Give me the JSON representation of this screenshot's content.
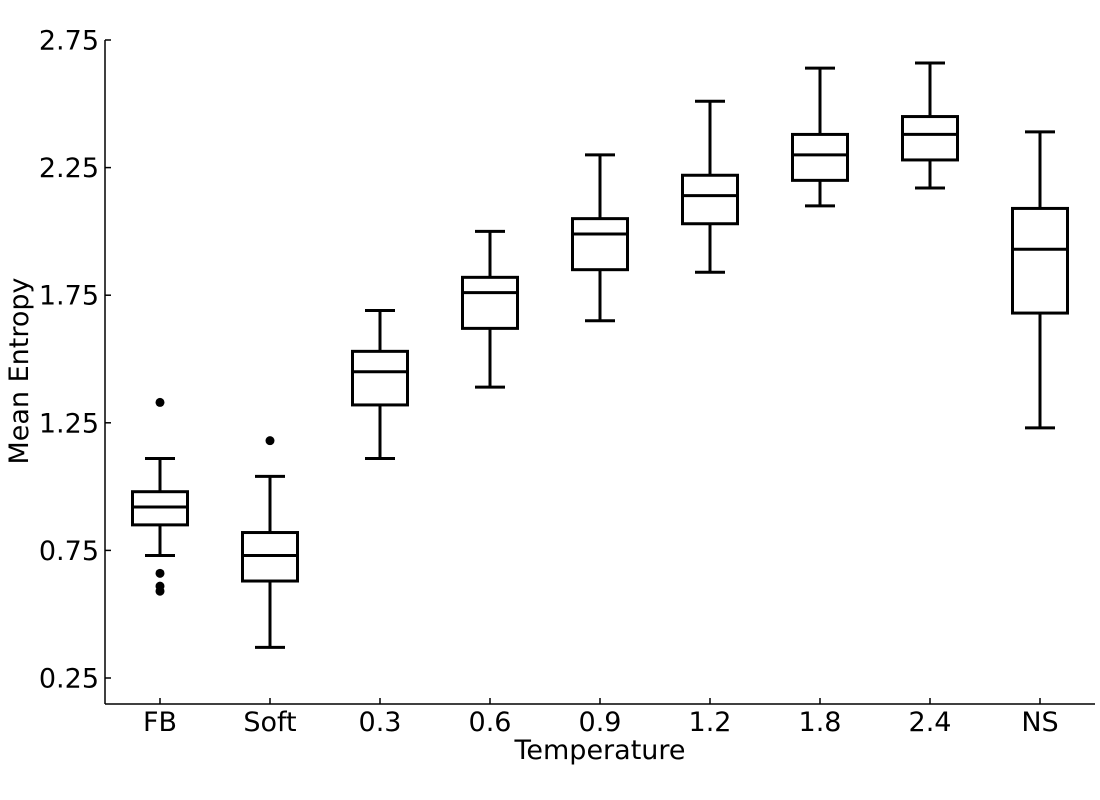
{
  "chart_data": {
    "type": "box",
    "xlabel": "Temperature",
    "ylabel": "Mean Entropy",
    "ylim": [
      0.15,
      2.75
    ],
    "yticks": [
      "0.25",
      "0.75",
      "1.25",
      "1.75",
      "2.25",
      "2.75"
    ],
    "grid": false,
    "categories": [
      "FB",
      "Soft",
      "0.3",
      "0.6",
      "0.9",
      "1.2",
      "1.8",
      "2.4",
      "NS"
    ],
    "boxes": [
      {
        "label": "FB",
        "whislo": 0.73,
        "q1": 0.85,
        "med": 0.92,
        "q3": 0.98,
        "whishi": 1.11,
        "fliers": [
          1.33,
          0.66,
          0.61,
          0.59
        ]
      },
      {
        "label": "Soft",
        "whislo": 0.37,
        "q1": 0.63,
        "med": 0.73,
        "q3": 0.82,
        "whishi": 1.04,
        "fliers": [
          1.18
        ]
      },
      {
        "label": "0.3",
        "whislo": 1.11,
        "q1": 1.32,
        "med": 1.45,
        "q3": 1.53,
        "whishi": 1.69,
        "fliers": []
      },
      {
        "label": "0.6",
        "whislo": 1.39,
        "q1": 1.62,
        "med": 1.76,
        "q3": 1.82,
        "whishi": 2.0,
        "fliers": []
      },
      {
        "label": "0.9",
        "whislo": 1.65,
        "q1": 1.85,
        "med": 1.99,
        "q3": 2.05,
        "whishi": 2.3,
        "fliers": []
      },
      {
        "label": "1.2",
        "whislo": 1.84,
        "q1": 2.03,
        "med": 2.14,
        "q3": 2.22,
        "whishi": 2.51,
        "fliers": []
      },
      {
        "label": "1.8",
        "whislo": 2.1,
        "q1": 2.2,
        "med": 2.3,
        "q3": 2.38,
        "whishi": 2.64,
        "fliers": []
      },
      {
        "label": "2.4",
        "whislo": 2.17,
        "q1": 2.28,
        "med": 2.38,
        "q3": 2.45,
        "whishi": 2.66,
        "fliers": []
      },
      {
        "label": "NS",
        "whislo": 1.23,
        "q1": 1.68,
        "med": 1.93,
        "q3": 2.09,
        "whishi": 2.39,
        "fliers": []
      }
    ]
  }
}
